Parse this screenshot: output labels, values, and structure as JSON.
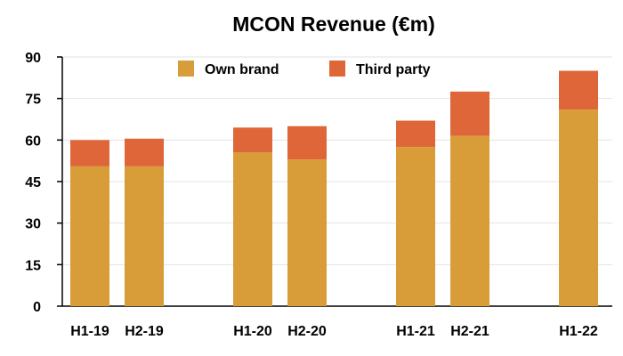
{
  "chart_data": {
    "type": "bar",
    "stacked": true,
    "title": "MCON Revenue (€m)",
    "xlabel": "",
    "ylabel": "",
    "ylim": [
      0,
      90
    ],
    "yticks": [
      0,
      15,
      30,
      45,
      60,
      75,
      90
    ],
    "categories": [
      "H1-19",
      "H2-19",
      "H1-20",
      "H2-20",
      "H1-21",
      "H2-21",
      "H1-22"
    ],
    "series": [
      {
        "name": "Own brand",
        "color": "#D89D38",
        "values": [
          50.5,
          50.5,
          55.5,
          53,
          57.5,
          61.5,
          71
        ]
      },
      {
        "name": "Third party",
        "color": "#DE6639",
        "values": [
          9.5,
          10,
          9,
          12,
          9.5,
          16,
          14
        ]
      }
    ],
    "grid": true,
    "legend": "top-center"
  }
}
